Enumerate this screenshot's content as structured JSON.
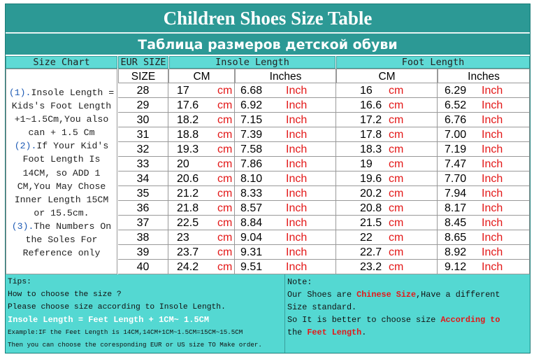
{
  "title": "Children Shoes Size Table",
  "subtitle": "Таблица размеров детской обуви",
  "headers": {
    "size_chart": "Size Chart",
    "eur_size": "EUR SIZE",
    "insole_length": "Insole Length",
    "foot_length": "Foot Length",
    "size": "SIZE",
    "cm": "CM",
    "inches": "Inches"
  },
  "side_note": {
    "p1_num": "(1).",
    "p1_text": "Insole Length =",
    "p1_l2": "Kids's Foot Length",
    "p1_l3": "+1~1.5Cm,You also",
    "p1_l4": "can + 1.5 Cm",
    "p2_num": "(2).",
    "p2_text": "If Your Kid's",
    "p2_l2": "Foot Length Is",
    "p2_l3": "14CM,  so ADD 1",
    "p2_l4": "CM,You May Chose",
    "p2_l5": "Inner Length 15CM",
    "p2_l6": "or 15.5cm.",
    "p3_num": "(3).",
    "p3_text": "The Numbers On",
    "p3_l2": "the Soles For",
    "p3_l3": "Reference only"
  },
  "units": {
    "cm": "cm",
    "inch": "Inch"
  },
  "rows": [
    {
      "size": "28",
      "insole_cm": "17",
      "insole_in": "6.68",
      "foot_cm": "16",
      "foot_in": "6.29"
    },
    {
      "size": "29",
      "insole_cm": "17.6",
      "insole_in": "6.92",
      "foot_cm": "16.6",
      "foot_in": "6.52"
    },
    {
      "size": "30",
      "insole_cm": "18.2",
      "insole_in": "7.15",
      "foot_cm": "17.2",
      "foot_in": "6.76"
    },
    {
      "size": "31",
      "insole_cm": "18.8",
      "insole_in": "7.39",
      "foot_cm": "17.8",
      "foot_in": "7.00"
    },
    {
      "size": "32",
      "insole_cm": "19.3",
      "insole_in": "7.58",
      "foot_cm": "18.3",
      "foot_in": "7.19"
    },
    {
      "size": "33",
      "insole_cm": "20",
      "insole_in": "7.86",
      "foot_cm": "19",
      "foot_in": "7.47"
    },
    {
      "size": "34",
      "insole_cm": "20.6",
      "insole_in": "8.10",
      "foot_cm": "19.6",
      "foot_in": "7.70"
    },
    {
      "size": "35",
      "insole_cm": "21.2",
      "insole_in": "8.33",
      "foot_cm": "20.2",
      "foot_in": "7.94"
    },
    {
      "size": "36",
      "insole_cm": "21.8",
      "insole_in": "8.57",
      "foot_cm": "20.8",
      "foot_in": "8.17"
    },
    {
      "size": "37",
      "insole_cm": "22.5",
      "insole_in": "8.84",
      "foot_cm": "21.5",
      "foot_in": "8.45"
    },
    {
      "size": "38",
      "insole_cm": "23",
      "insole_in": "9.04",
      "foot_cm": "22",
      "foot_in": "8.65"
    },
    {
      "size": "39",
      "insole_cm": "23.7",
      "insole_in": "9.31",
      "foot_cm": "22.7",
      "foot_in": "8.92"
    },
    {
      "size": "40",
      "insole_cm": "24.2",
      "insole_in": "9.51",
      "foot_cm": "23.2",
      "foot_in": "9.12"
    }
  ],
  "tips": {
    "label": "Tips:",
    "l1": "How to choose the size ?",
    "l2": "Please choose size according to Insole Length.",
    "formula": "Insole Length = Feet Length + 1CM~ 1.5CM",
    "example": "Example:IF the Feet Length is 14CM,14CM+1CM~1.5CM=15CM~15.5CM",
    "last": "Then you can choose the coresponding EUR or US size TO Make order."
  },
  "note": {
    "label": "Note:",
    "l1a": "Our Shoes are ",
    "l1b": "Chinese Size",
    "l1c": ",Have a different",
    "l2": "Size standard.",
    "l3a": "So It is better to choose size ",
    "l3b": "According to",
    "l4a": "the ",
    "l4b": "Feet Length",
    "l4c": "."
  },
  "colors": {
    "teal": "#2c9995",
    "header_cyan": "#5fdad5",
    "footer_cyan": "#54d8d2",
    "unit_red": "#e31818",
    "note_blue": "#1e5bb5"
  }
}
